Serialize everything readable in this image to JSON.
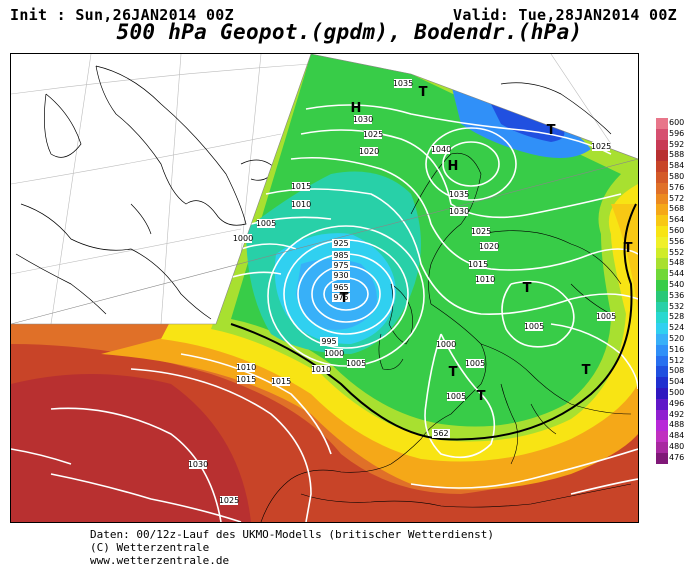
{
  "header": {
    "init_label": "Init : Sun,26JAN2014 00Z",
    "valid_label": "Valid: Tue,28JAN2014 00Z",
    "title": "500 hPa Geopot.(gpdm), Bodendr.(hPa)"
  },
  "credits": {
    "line1": "Daten: 00/12z-Lauf des UKMO-Modells (britischer Wetterdienst)",
    "line2": "(C) Wetterzentrale",
    "line3": "www.wetterzentrale.de"
  },
  "color_scale": {
    "entries": [
      {
        "label": "600",
        "color": "#e8768a"
      },
      {
        "label": "596",
        "color": "#d65070"
      },
      {
        "label": "592",
        "color": "#c83a55"
      },
      {
        "label": "588",
        "color": "#b83030"
      },
      {
        "label": "584",
        "color": "#c84428"
      },
      {
        "label": "580",
        "color": "#d45a28"
      },
      {
        "label": "576",
        "color": "#e07028"
      },
      {
        "label": "572",
        "color": "#ec8a20"
      },
      {
        "label": "568",
        "color": "#f5a818"
      },
      {
        "label": "564",
        "color": "#f8c814"
      },
      {
        "label": "560",
        "color": "#f8e414"
      },
      {
        "label": "556",
        "color": "#f0f028"
      },
      {
        "label": "552",
        "color": "#d0ec28"
      },
      {
        "label": "548",
        "color": "#a8e030"
      },
      {
        "label": "544",
        "color": "#70d838"
      },
      {
        "label": "540",
        "color": "#38cc48"
      },
      {
        "label": "536",
        "color": "#28c878"
      },
      {
        "label": "532",
        "color": "#28d0a8"
      },
      {
        "label": "528",
        "color": "#28d8d0"
      },
      {
        "label": "524",
        "color": "#30d0f0"
      },
      {
        "label": "520",
        "color": "#38b0f8"
      },
      {
        "label": "516",
        "color": "#3090f8"
      },
      {
        "label": "512",
        "color": "#2870f0"
      },
      {
        "label": "508",
        "color": "#2050e0"
      },
      {
        "label": "504",
        "color": "#2030d0"
      },
      {
        "label": "500",
        "color": "#3018c0"
      },
      {
        "label": "496",
        "color": "#6018c8"
      },
      {
        "label": "492",
        "color": "#9020d0"
      },
      {
        "label": "488",
        "color": "#b828d8"
      },
      {
        "label": "484",
        "color": "#c030c0"
      },
      {
        "label": "480",
        "color": "#a828a0"
      },
      {
        "label": "476",
        "color": "#801878"
      }
    ]
  },
  "map": {
    "isobar_labels": [
      "1035",
      "1030",
      "1025",
      "1020",
      "1040",
      "1035",
      "1030",
      "1025",
      "1020",
      "1015",
      "1010",
      "1015",
      "1010",
      "1000",
      "1005",
      "1005",
      "1000",
      "1005",
      "1005",
      "1010",
      "1015",
      "1030",
      "1025",
      "1010",
      "1015",
      "1005",
      "995",
      "1000",
      "1005",
      "1025",
      "925",
      "985",
      "975",
      "930",
      "965",
      "975",
      "562"
    ],
    "pressure_centers": [
      "H",
      "H",
      "T",
      "T",
      "T",
      "T",
      "T",
      "T",
      "T",
      "T"
    ]
  }
}
